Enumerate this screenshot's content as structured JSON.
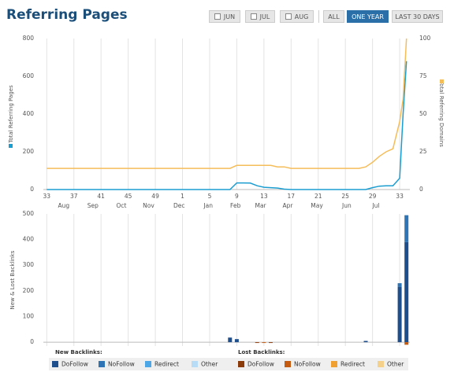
{
  "header": {
    "title": "Referring Pages",
    "month_buttons": [
      "JUN",
      "JUL",
      "AUG"
    ],
    "range_buttons": [
      "ALL",
      "ONE YEAR",
      "LAST 30 DAYS"
    ],
    "active_range": 1
  },
  "chart_data": [
    {
      "type": "line",
      "ylabel": "Total Referring Pages",
      "y2label": "Total Referring Domains",
      "xlim": [
        -0.5,
        53.5
      ],
      "xticks": [
        {
          "value": 0,
          "label": "33"
        },
        {
          "value": 4,
          "label": "37"
        },
        {
          "value": 8,
          "label": "41"
        },
        {
          "value": 12,
          "label": "45"
        },
        {
          "value": 16,
          "label": "49"
        },
        {
          "value": 20,
          "label": "1"
        },
        {
          "value": 24,
          "label": "5"
        },
        {
          "value": 28,
          "label": "9"
        },
        {
          "value": 32,
          "label": "13"
        },
        {
          "value": 36,
          "label": "17"
        },
        {
          "value": 40,
          "label": "21"
        },
        {
          "value": 44,
          "label": "25"
        },
        {
          "value": 48,
          "label": "29"
        },
        {
          "value": 52,
          "label": "33"
        }
      ],
      "month_ticks": [
        {
          "value": 2.5,
          "label": "Aug"
        },
        {
          "value": 6.8,
          "label": "Sep"
        },
        {
          "value": 11,
          "label": "Oct"
        },
        {
          "value": 15,
          "label": "Nov"
        },
        {
          "value": 19.5,
          "label": "Dec"
        },
        {
          "value": 23.8,
          "label": "Jan"
        },
        {
          "value": 27.8,
          "label": "Feb"
        },
        {
          "value": 31.5,
          "label": "Mar"
        },
        {
          "value": 35.5,
          "label": "Apr"
        },
        {
          "value": 39.8,
          "label": "May"
        },
        {
          "value": 44.2,
          "label": "Jun"
        },
        {
          "value": 48.5,
          "label": "Jul"
        }
      ],
      "ylim": [
        0,
        800
      ],
      "yticks": [
        0,
        200,
        400,
        600,
        800
      ],
      "y2lim": [
        0,
        100
      ],
      "y2ticks": [
        0,
        25,
        50,
        75,
        100
      ],
      "grid": true,
      "x": [
        0,
        26,
        27,
        28,
        29,
        30,
        31,
        32,
        33,
        34,
        35,
        36,
        40,
        44,
        46,
        47,
        48,
        49,
        50,
        51,
        52,
        52.5,
        53
      ],
      "series": [
        {
          "name": "Total Referring Pages",
          "color": "#1b9dd0",
          "values": [
            0,
            0,
            0,
            35,
            35,
            34,
            20,
            12,
            10,
            8,
            2,
            0,
            0,
            0,
            0,
            0,
            10,
            18,
            20,
            20,
            60,
            400,
            680
          ]
        },
        {
          "name": "Total Referring Domains",
          "color": "#f5bd5a",
          "axis": "y2",
          "values": [
            14,
            14,
            14,
            16,
            16,
            16,
            16,
            16,
            16,
            15,
            15,
            14,
            14,
            14,
            14,
            15,
            18,
            22,
            25,
            27,
            45,
            60,
            100
          ]
        }
      ]
    },
    {
      "type": "stacked_bar",
      "ylabel": "New & Lost Backlinks",
      "xlim": [
        -0.5,
        53.5
      ],
      "ylim": [
        -15,
        500
      ],
      "yticks": [
        0,
        100,
        200,
        300,
        400,
        500
      ],
      "grid": true,
      "x": [
        27,
        28,
        31,
        32,
        33,
        47,
        52,
        53
      ],
      "legend_groups": [
        "New Backlinks:",
        "Lost Backlinks:"
      ],
      "series": [
        {
          "name": "DoFollow",
          "group": 0,
          "color": "#1f4e8c",
          "values": [
            18,
            12,
            0,
            0,
            0,
            5,
            215,
            390
          ]
        },
        {
          "name": "NoFollow",
          "group": 0,
          "color": "#2f75b5",
          "values": [
            0,
            0,
            0,
            0,
            0,
            0,
            15,
            105
          ]
        },
        {
          "name": "Redirect",
          "group": 0,
          "color": "#4da6e6",
          "values": [
            0,
            0,
            0,
            0,
            0,
            0,
            0,
            0
          ]
        },
        {
          "name": "Other",
          "group": 0,
          "color": "#b8dcf5",
          "values": [
            0,
            0,
            0,
            0,
            0,
            0,
            0,
            0
          ]
        },
        {
          "name": "DoFollow",
          "group": 1,
          "color": "#8b3a0a",
          "values": [
            0,
            0,
            -3,
            0,
            -3,
            0,
            0,
            0
          ]
        },
        {
          "name": "NoFollow",
          "group": 1,
          "color": "#c55a11",
          "values": [
            0,
            0,
            0,
            -3,
            0,
            0,
            0,
            -10
          ]
        },
        {
          "name": "Redirect",
          "group": 1,
          "color": "#f0a030",
          "values": [
            0,
            0,
            0,
            0,
            0,
            0,
            0,
            0
          ]
        },
        {
          "name": "Other",
          "group": 1,
          "color": "#f5d08a",
          "values": [
            0,
            0,
            0,
            0,
            0,
            0,
            0,
            0
          ]
        }
      ]
    }
  ]
}
